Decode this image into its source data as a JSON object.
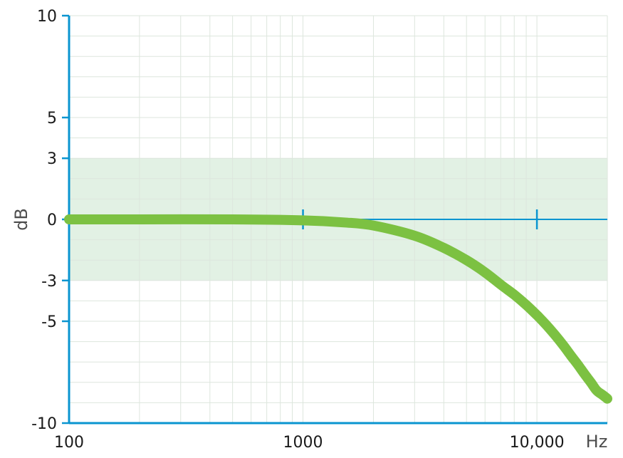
{
  "chart_data": {
    "type": "line",
    "title": "",
    "xlabel": "Hz",
    "ylabel": "dB",
    "x_scale": "log",
    "xlim": [
      100,
      20000
    ],
    "ylim": [
      -10,
      10
    ],
    "x_ticks": [
      {
        "value": 100,
        "label": "100"
      },
      {
        "value": 1000,
        "label": "1000"
      },
      {
        "value": 10000,
        "label": "10,000"
      }
    ],
    "y_ticks": [
      {
        "value": 10,
        "label": "10"
      },
      {
        "value": 5,
        "label": "5"
      },
      {
        "value": 3,
        "label": "3"
      },
      {
        "value": 0,
        "label": "0"
      },
      {
        "value": -3,
        "label": "-3"
      },
      {
        "value": -5,
        "label": "-5"
      },
      {
        "value": -10,
        "label": "-10"
      }
    ],
    "grid": true,
    "highlight_band": [
      -3,
      3
    ],
    "series": [
      {
        "x": [
          100,
          200,
          500,
          1000,
          1500,
          2000,
          3000,
          4000,
          5000,
          6000,
          7000,
          8000,
          9000,
          10000,
          11000,
          12000,
          13000,
          14000,
          15000,
          16000,
          17000,
          18000,
          19000,
          20000
        ],
        "values": [
          0,
          0,
          0,
          -0.05,
          -0.15,
          -0.3,
          -0.8,
          -1.4,
          -2.0,
          -2.6,
          -3.2,
          -3.7,
          -4.2,
          -4.7,
          -5.2,
          -5.7,
          -6.2,
          -6.7,
          -7.15,
          -7.6,
          -8.0,
          -8.4,
          -8.6,
          -8.8
        ]
      }
    ],
    "colors": {
      "axis": "#0a95d0",
      "band": "#e2f1e4",
      "grid": "#dde6dd",
      "line": "#7cc142"
    }
  }
}
